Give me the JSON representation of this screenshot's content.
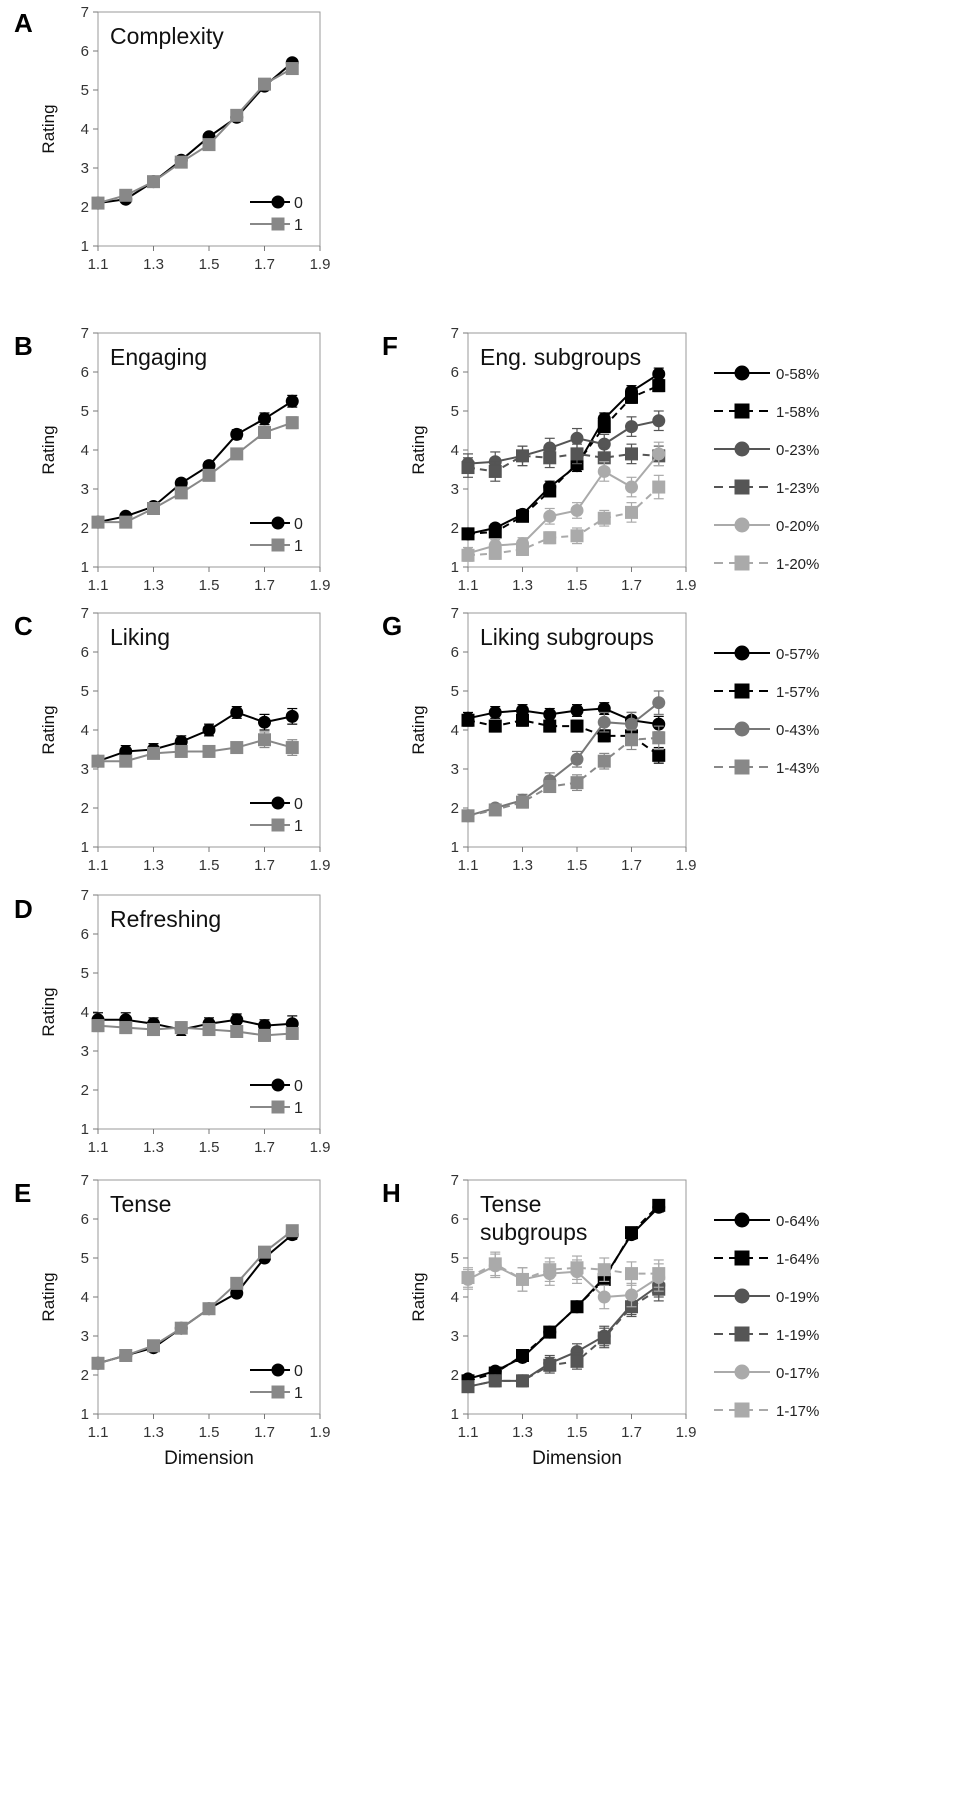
{
  "figure": {
    "x_axis_label": "Dimension",
    "y_axis_label": "Rating"
  },
  "chart_data": [
    {
      "type": "line",
      "panel": "A",
      "title": "Complexity",
      "xlabel": "",
      "ylabel": "Rating",
      "x": [
        1.1,
        1.2,
        1.3,
        1.4,
        1.5,
        1.6,
        1.7,
        1.8
      ],
      "xticks": [
        "1.1",
        "1.3",
        "1.5",
        "1.7",
        "1.9"
      ],
      "yticks": [
        "1",
        "2",
        "3",
        "4",
        "5",
        "6",
        "7"
      ],
      "xlim": [
        1.1,
        1.9
      ],
      "ylim": [
        1,
        7
      ],
      "legend_position": "bottom-right",
      "series": [
        {
          "name": "0",
          "color": "#000000",
          "marker": "circle",
          "dash": "solid",
          "values": [
            2.1,
            2.2,
            2.65,
            3.2,
            3.8,
            4.3,
            5.1,
            5.7
          ],
          "errors": [
            0.07,
            0.07,
            0.07,
            0.08,
            0.08,
            0.08,
            0.08,
            0.08
          ]
        },
        {
          "name": "1",
          "color": "#888888",
          "marker": "square",
          "dash": "solid",
          "values": [
            2.1,
            2.3,
            2.65,
            3.15,
            3.6,
            4.35,
            5.15,
            5.55
          ],
          "errors": [
            0.07,
            0.07,
            0.07,
            0.08,
            0.08,
            0.08,
            0.08,
            0.08
          ]
        }
      ]
    },
    {
      "type": "line",
      "panel": "B",
      "title": "Engaging",
      "xlabel": "",
      "ylabel": "Rating",
      "x": [
        1.1,
        1.2,
        1.3,
        1.4,
        1.5,
        1.6,
        1.7,
        1.8
      ],
      "xticks": [
        "1.1",
        "1.3",
        "1.5",
        "1.7",
        "1.9"
      ],
      "yticks": [
        "1",
        "2",
        "3",
        "4",
        "5",
        "6",
        "7"
      ],
      "xlim": [
        1.1,
        1.9
      ],
      "ylim": [
        1,
        7
      ],
      "legend_position": "bottom-right",
      "series": [
        {
          "name": "0",
          "color": "#000000",
          "marker": "circle",
          "dash": "solid",
          "values": [
            2.15,
            2.3,
            2.55,
            3.15,
            3.6,
            4.4,
            4.8,
            5.25
          ],
          "errors": [
            0.08,
            0.08,
            0.08,
            0.1,
            0.1,
            0.12,
            0.15,
            0.15
          ]
        },
        {
          "name": "1",
          "color": "#888888",
          "marker": "square",
          "dash": "solid",
          "values": [
            2.15,
            2.15,
            2.5,
            2.9,
            3.35,
            3.9,
            4.45,
            4.7
          ],
          "errors": [
            0.08,
            0.08,
            0.08,
            0.1,
            0.1,
            0.12,
            0.15,
            0.15
          ]
        }
      ]
    },
    {
      "type": "line",
      "panel": "C",
      "title": "Liking",
      "xlabel": "",
      "ylabel": "Rating",
      "x": [
        1.1,
        1.2,
        1.3,
        1.4,
        1.5,
        1.6,
        1.7,
        1.8
      ],
      "xticks": [
        "1.1",
        "1.3",
        "1.5",
        "1.7",
        "1.9"
      ],
      "yticks": [
        "1",
        "2",
        "3",
        "4",
        "5",
        "6",
        "7"
      ],
      "xlim": [
        1.1,
        1.9
      ],
      "ylim": [
        1,
        7
      ],
      "legend_position": "bottom-right",
      "series": [
        {
          "name": "0",
          "color": "#000000",
          "marker": "circle",
          "dash": "solid",
          "values": [
            3.2,
            3.45,
            3.5,
            3.7,
            4.0,
            4.45,
            4.2,
            4.35
          ],
          "errors": [
            0.12,
            0.15,
            0.15,
            0.15,
            0.15,
            0.15,
            0.2,
            0.2
          ]
        },
        {
          "name": "1",
          "color": "#888888",
          "marker": "square",
          "dash": "solid",
          "values": [
            3.2,
            3.2,
            3.4,
            3.45,
            3.45,
            3.55,
            3.75,
            3.55
          ],
          "errors": [
            0.12,
            0.12,
            0.12,
            0.12,
            0.12,
            0.12,
            0.2,
            0.2
          ]
        }
      ]
    },
    {
      "type": "line",
      "panel": "D",
      "title": "Refreshing",
      "xlabel": "",
      "ylabel": "Rating",
      "x": [
        1.1,
        1.2,
        1.3,
        1.4,
        1.5,
        1.6,
        1.7,
        1.8
      ],
      "xticks": [
        "1.1",
        "1.3",
        "1.5",
        "1.7",
        "1.9"
      ],
      "yticks": [
        "1",
        "2",
        "3",
        "4",
        "5",
        "6",
        "7"
      ],
      "xlim": [
        1.1,
        1.9
      ],
      "ylim": [
        1,
        7
      ],
      "legend_position": "bottom-right",
      "series": [
        {
          "name": "0",
          "color": "#000000",
          "marker": "circle",
          "dash": "solid",
          "values": [
            3.8,
            3.8,
            3.7,
            3.55,
            3.7,
            3.8,
            3.65,
            3.7
          ],
          "errors": [
            0.18,
            0.18,
            0.15,
            0.15,
            0.15,
            0.15,
            0.15,
            0.2
          ]
        },
        {
          "name": "1",
          "color": "#888888",
          "marker": "square",
          "dash": "solid",
          "values": [
            3.65,
            3.6,
            3.55,
            3.6,
            3.55,
            3.5,
            3.4,
            3.45
          ],
          "errors": [
            0.15,
            0.15,
            0.15,
            0.15,
            0.15,
            0.15,
            0.15,
            0.15
          ]
        }
      ]
    },
    {
      "type": "line",
      "panel": "E",
      "title": "Tense",
      "xlabel": "Dimension",
      "ylabel": "Rating",
      "x": [
        1.1,
        1.2,
        1.3,
        1.4,
        1.5,
        1.6,
        1.7,
        1.8
      ],
      "xticks": [
        "1.1",
        "1.3",
        "1.5",
        "1.7",
        "1.9"
      ],
      "yticks": [
        "1",
        "2",
        "3",
        "4",
        "5",
        "6",
        "7"
      ],
      "xlim": [
        1.1,
        1.9
      ],
      "ylim": [
        1,
        7
      ],
      "legend_position": "bottom-right",
      "series": [
        {
          "name": "0",
          "color": "#000000",
          "marker": "circle",
          "dash": "solid",
          "values": [
            2.3,
            2.5,
            2.7,
            3.2,
            3.7,
            4.1,
            5.0,
            5.6
          ],
          "errors": [
            0.08,
            0.08,
            0.1,
            0.1,
            0.1,
            0.1,
            0.1,
            0.12
          ]
        },
        {
          "name": "1",
          "color": "#888888",
          "marker": "square",
          "dash": "solid",
          "values": [
            2.3,
            2.5,
            2.75,
            3.2,
            3.7,
            4.35,
            5.15,
            5.7
          ],
          "errors": [
            0.08,
            0.08,
            0.1,
            0.1,
            0.1,
            0.1,
            0.1,
            0.12
          ]
        }
      ]
    },
    {
      "type": "line",
      "panel": "F",
      "title": "Eng. subgroups",
      "xlabel": "",
      "ylabel": "Rating",
      "x": [
        1.1,
        1.2,
        1.3,
        1.4,
        1.5,
        1.6,
        1.7,
        1.8
      ],
      "xticks": [
        "1.1",
        "1.3",
        "1.5",
        "1.7",
        "1.9"
      ],
      "yticks": [
        "1",
        "2",
        "3",
        "4",
        "5",
        "6",
        "7"
      ],
      "xlim": [
        1.1,
        1.9
      ],
      "ylim": [
        1,
        7
      ],
      "legend_position": "right-outside",
      "series": [
        {
          "name": "0-58%",
          "color": "#000000",
          "marker": "circle",
          "dash": "solid",
          "values": [
            1.85,
            2.0,
            2.35,
            3.05,
            3.6,
            4.8,
            5.5,
            5.95
          ],
          "errors": [
            0.1,
            0.1,
            0.12,
            0.15,
            0.15,
            0.15,
            0.15,
            0.15
          ]
        },
        {
          "name": "1-58%",
          "color": "#000000",
          "marker": "square",
          "dash": "dashed",
          "values": [
            1.85,
            1.9,
            2.3,
            2.95,
            3.65,
            4.6,
            5.35,
            5.65
          ],
          "errors": [
            0.1,
            0.1,
            0.12,
            0.15,
            0.15,
            0.15,
            0.15,
            0.15
          ]
        },
        {
          "name": "0-23%",
          "color": "#555555",
          "marker": "circle",
          "dash": "solid",
          "values": [
            3.65,
            3.7,
            3.85,
            4.05,
            4.3,
            4.15,
            4.6,
            4.75
          ],
          "errors": [
            0.25,
            0.25,
            0.25,
            0.25,
            0.25,
            0.25,
            0.25,
            0.25
          ]
        },
        {
          "name": "1-23%",
          "color": "#555555",
          "marker": "square",
          "dash": "dashed",
          "values": [
            3.55,
            3.45,
            3.85,
            3.8,
            3.9,
            3.8,
            3.9,
            3.85
          ],
          "errors": [
            0.25,
            0.25,
            0.25,
            0.25,
            0.25,
            0.25,
            0.25,
            0.25
          ]
        },
        {
          "name": "0-20%",
          "color": "#aaaaaa",
          "marker": "circle",
          "dash": "solid",
          "values": [
            1.35,
            1.55,
            1.6,
            2.3,
            2.45,
            3.45,
            3.05,
            3.9
          ],
          "errors": [
            0.15,
            0.15,
            0.15,
            0.2,
            0.2,
            0.25,
            0.25,
            0.3
          ]
        },
        {
          "name": "1-20%",
          "color": "#aaaaaa",
          "marker": "square",
          "dash": "dashed",
          "values": [
            1.3,
            1.35,
            1.45,
            1.75,
            1.8,
            2.25,
            2.4,
            3.05
          ],
          "errors": [
            0.15,
            0.15,
            0.15,
            0.15,
            0.2,
            0.2,
            0.25,
            0.3
          ]
        }
      ]
    },
    {
      "type": "line",
      "panel": "G",
      "title": "Liking subgroups",
      "xlabel": "",
      "ylabel": "Rating",
      "x": [
        1.1,
        1.2,
        1.3,
        1.4,
        1.5,
        1.6,
        1.7,
        1.8
      ],
      "xticks": [
        "1.1",
        "1.3",
        "1.5",
        "1.7",
        "1.9"
      ],
      "yticks": [
        "1",
        "2",
        "3",
        "4",
        "5",
        "6",
        "7"
      ],
      "xlim": [
        1.1,
        1.9
      ],
      "ylim": [
        1,
        7
      ],
      "legend_position": "right-outside",
      "series": [
        {
          "name": "0-57%",
          "color": "#000000",
          "marker": "circle",
          "dash": "solid",
          "values": [
            4.3,
            4.45,
            4.5,
            4.4,
            4.5,
            4.55,
            4.25,
            4.15
          ],
          "errors": [
            0.15,
            0.15,
            0.15,
            0.15,
            0.15,
            0.15,
            0.2,
            0.2
          ]
        },
        {
          "name": "1-57%",
          "color": "#000000",
          "marker": "square",
          "dash": "dashed",
          "values": [
            4.25,
            4.1,
            4.25,
            4.1,
            4.1,
            3.85,
            3.85,
            3.35
          ],
          "errors": [
            0.15,
            0.15,
            0.15,
            0.15,
            0.15,
            0.15,
            0.2,
            0.2
          ]
        },
        {
          "name": "0-43%",
          "color": "#777777",
          "marker": "circle",
          "dash": "solid",
          "values": [
            1.8,
            2.0,
            2.2,
            2.7,
            3.25,
            4.2,
            4.15,
            4.7
          ],
          "errors": [
            0.1,
            0.1,
            0.15,
            0.2,
            0.2,
            0.25,
            0.3,
            0.3
          ]
        },
        {
          "name": "1-43%",
          "color": "#888888",
          "marker": "square",
          "dash": "dashed",
          "values": [
            1.8,
            1.95,
            2.15,
            2.55,
            2.65,
            3.2,
            3.75,
            3.8
          ],
          "errors": [
            0.1,
            0.1,
            0.15,
            0.15,
            0.2,
            0.2,
            0.25,
            0.3
          ]
        }
      ]
    },
    {
      "type": "line",
      "panel": "H",
      "title": "Tense subgroups",
      "title_lines": [
        "Tense",
        "subgroups"
      ],
      "xlabel": "Dimension",
      "ylabel": "Rating",
      "x": [
        1.1,
        1.2,
        1.3,
        1.4,
        1.5,
        1.6,
        1.7,
        1.8
      ],
      "xticks": [
        "1.1",
        "1.3",
        "1.5",
        "1.7",
        "1.9"
      ],
      "yticks": [
        "1",
        "2",
        "3",
        "4",
        "5",
        "6",
        "7"
      ],
      "xlim": [
        1.1,
        1.9
      ],
      "ylim": [
        1,
        7
      ],
      "legend_position": "right-outside",
      "series": [
        {
          "name": "0-64%",
          "color": "#000000",
          "marker": "circle",
          "dash": "solid",
          "values": [
            1.9,
            2.1,
            2.45,
            3.1,
            3.75,
            4.5,
            5.6,
            6.3
          ],
          "errors": [
            0.08,
            0.08,
            0.1,
            0.12,
            0.12,
            0.12,
            0.12,
            0.12
          ]
        },
        {
          "name": "1-64%",
          "color": "#000000",
          "marker": "square",
          "dash": "dashed",
          "values": [
            1.85,
            2.05,
            2.5,
            3.1,
            3.75,
            4.45,
            5.65,
            6.35
          ],
          "errors": [
            0.08,
            0.08,
            0.1,
            0.12,
            0.12,
            0.12,
            0.12,
            0.12
          ]
        },
        {
          "name": "0-19%",
          "color": "#555555",
          "marker": "circle",
          "dash": "solid",
          "values": [
            1.7,
            1.85,
            1.85,
            2.3,
            2.6,
            3.0,
            3.8,
            4.3
          ],
          "errors": [
            0.12,
            0.15,
            0.15,
            0.2,
            0.2,
            0.25,
            0.25,
            0.3
          ]
        },
        {
          "name": "1-19%",
          "color": "#555555",
          "marker": "square",
          "dash": "dashed",
          "values": [
            1.7,
            1.85,
            1.85,
            2.25,
            2.35,
            2.95,
            3.75,
            4.2
          ],
          "errors": [
            0.12,
            0.15,
            0.15,
            0.2,
            0.2,
            0.25,
            0.25,
            0.3
          ]
        },
        {
          "name": "0-17%",
          "color": "#aaaaaa",
          "marker": "circle",
          "dash": "solid",
          "values": [
            4.45,
            4.8,
            4.45,
            4.6,
            4.65,
            4.0,
            4.05,
            4.5
          ],
          "errors": [
            0.25,
            0.3,
            0.3,
            0.3,
            0.3,
            0.3,
            0.3,
            0.35
          ]
        },
        {
          "name": "1-17%",
          "color": "#aaaaaa",
          "marker": "square",
          "dash": "dashed",
          "values": [
            4.5,
            4.85,
            4.45,
            4.7,
            4.75,
            4.7,
            4.6,
            4.6
          ],
          "errors": [
            0.25,
            0.3,
            0.3,
            0.3,
            0.3,
            0.3,
            0.3,
            0.35
          ]
        }
      ]
    }
  ]
}
